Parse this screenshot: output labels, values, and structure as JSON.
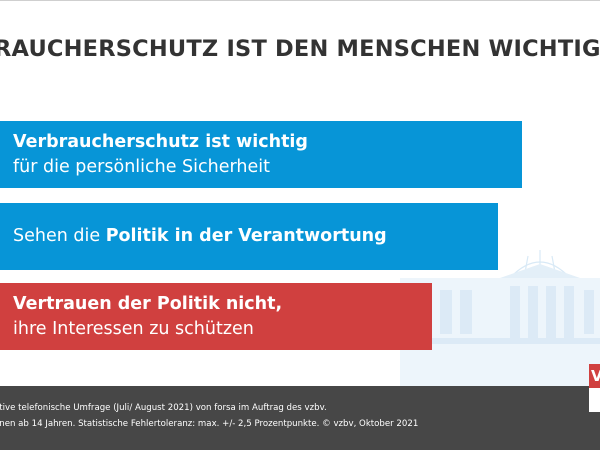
{
  "title": "RAUCHERSCHUTZ IST DEN MENSCHEN WICHTIG",
  "chart_data": {
    "type": "bar",
    "orientation": "horizontal",
    "categories": [
      "Verbraucherschutz ist wichtig für die persönliche Sicherheit",
      "Sehen die Politik in der Verantwortung",
      "Vertrauen der Politik nicht, ihre Interessen zu schützen"
    ],
    "values": [
      87,
      83,
      72
    ],
    "bars": [
      {
        "bold_prefix": "Verbraucherschutz ist wichtig",
        "normal_after": "",
        "line2": "für die persönliche Sicherheit",
        "color": "#0795d7",
        "value": 87
      },
      {
        "bold_prefix": "",
        "normal_before": "Sehen die ",
        "bold_mid": "Politik in der Verantwortung",
        "line2": "",
        "color": "#0795d7",
        "value": 83
      },
      {
        "bold_prefix": "Vertrauen der Politik nicht,",
        "line2": "ihre Interessen zu schützen",
        "color": "#d0403f",
        "value": 72
      }
    ],
    "colors": {
      "blue": "#0795d7",
      "red": "#d0403f"
    }
  },
  "footer": {
    "line1": "ative telefonische Umfrage (Juli/ August 2021) von forsa im Auftrag des vzbv.",
    "line2": "onen ab 14 Jahren. Statistische Fehlertoleranz: max. +/- 2,5 Prozentpunkte. © vzbv, Oktober 2021"
  },
  "logo": {
    "letter": "V",
    "name": "vzbv-logo"
  }
}
